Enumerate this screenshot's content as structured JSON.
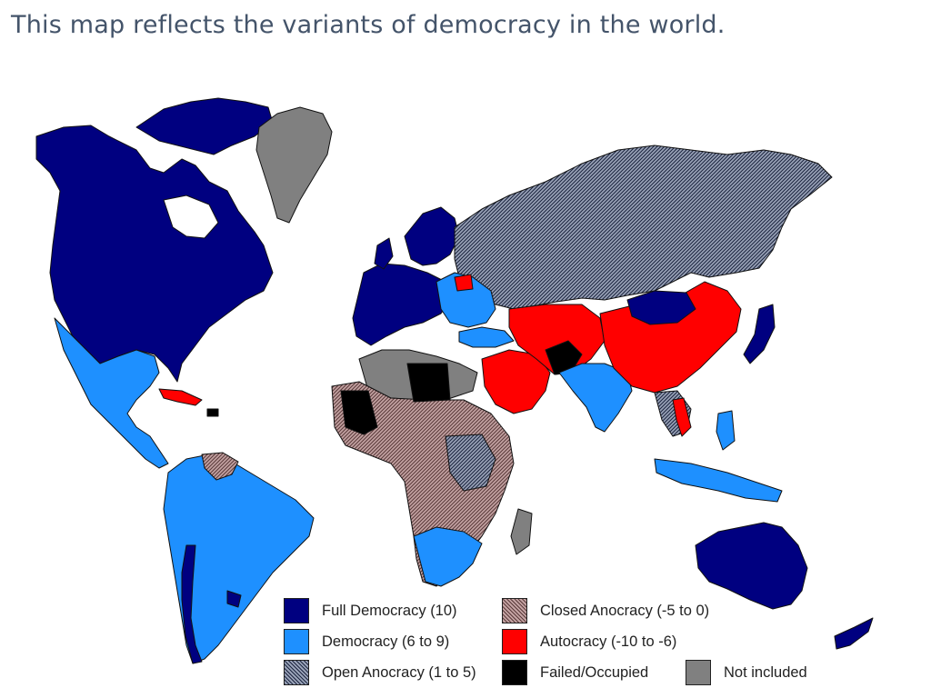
{
  "title": "This map reflects the variants of democracy in the world.",
  "colors": {
    "full_democracy": "#000080",
    "democracy": "#1e90ff",
    "open_anocracy": "#5f6b86",
    "closed_anocracy": "#9b7b7b",
    "autocracy": "#ff0000",
    "failed_occupied": "#000000",
    "not_included": "#808080",
    "border": "#111111"
  },
  "legend": [
    {
      "key": "full_democracy",
      "label": "Full Democracy (10)",
      "pattern": "solid"
    },
    {
      "key": "democracy",
      "label": "Democracy (6 to 9)",
      "pattern": "solid"
    },
    {
      "key": "open_anocracy",
      "label": "Open Anocracy (1 to 5)",
      "pattern": "hatch"
    },
    {
      "key": "closed_anocracy",
      "label": "Closed Anocracy (-5 to 0)",
      "pattern": "hatch"
    },
    {
      "key": "autocracy",
      "label": "Autocracy (-10 to -6)",
      "pattern": "solid"
    },
    {
      "key": "failed_occupied",
      "label": "Failed/Occupied",
      "pattern": "solid"
    },
    {
      "key": "not_included",
      "label": "Not included",
      "pattern": "solid"
    }
  ]
}
